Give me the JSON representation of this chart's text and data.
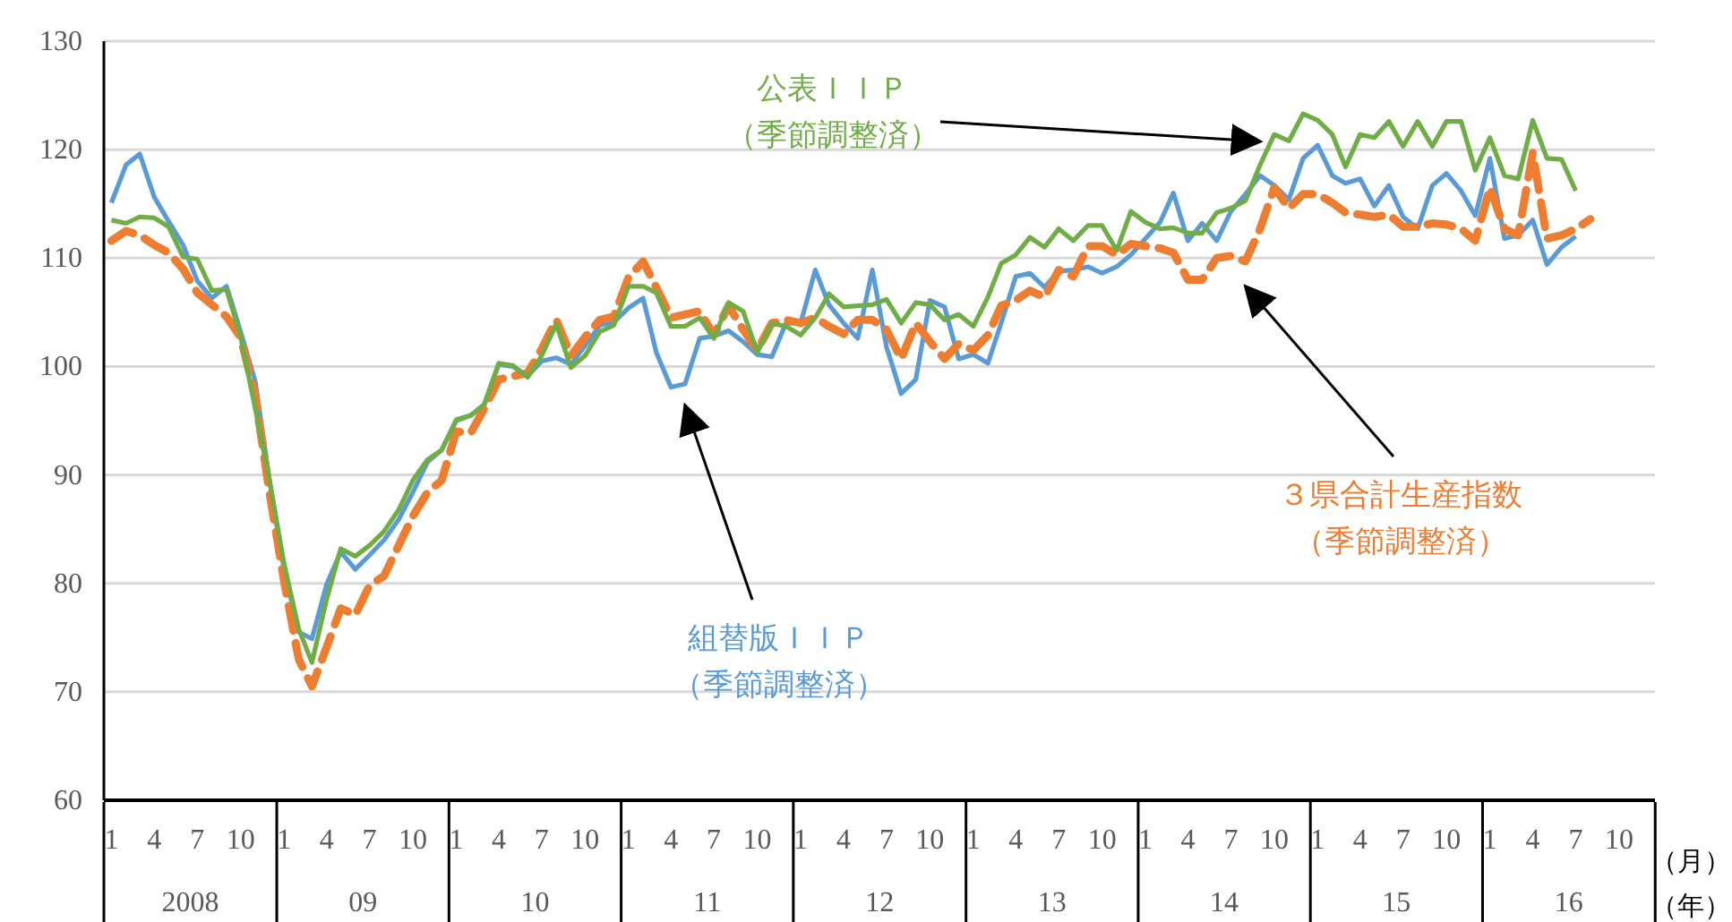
{
  "chart_data": {
    "type": "line",
    "x": [
      "2008-01",
      "2008-02",
      "2008-03",
      "2008-04",
      "2008-05",
      "2008-06",
      "2008-07",
      "2008-08",
      "2008-09",
      "2008-10",
      "2008-11",
      "2008-12",
      "2009-01",
      "2009-02",
      "2009-03",
      "2009-04",
      "2009-05",
      "2009-06",
      "2009-07",
      "2009-08",
      "2009-09",
      "2009-10",
      "2009-11",
      "2009-12",
      "2010-01",
      "2010-02",
      "2010-03",
      "2010-04",
      "2010-05",
      "2010-06",
      "2010-07",
      "2010-08",
      "2010-09",
      "2010-10",
      "2010-11",
      "2010-12",
      "2011-01",
      "2011-02",
      "2011-03",
      "2011-04",
      "2011-05",
      "2011-06",
      "2011-07",
      "2011-08",
      "2011-09",
      "2011-10",
      "2011-11",
      "2011-12",
      "2012-01",
      "2012-02",
      "2012-03",
      "2012-04",
      "2012-05",
      "2012-06",
      "2012-07",
      "2012-08",
      "2012-09",
      "2012-10",
      "2012-11",
      "2012-12",
      "2013-01",
      "2013-02",
      "2013-03",
      "2013-04",
      "2013-05",
      "2013-06",
      "2013-07",
      "2013-08",
      "2013-09",
      "2013-10",
      "2013-11",
      "2013-12",
      "2014-01",
      "2014-02",
      "2014-03",
      "2014-04",
      "2014-05",
      "2014-06",
      "2014-07",
      "2014-08",
      "2014-09",
      "2014-10",
      "2014-11",
      "2014-12",
      "2015-01",
      "2015-02",
      "2015-03",
      "2015-04",
      "2015-05",
      "2015-06",
      "2015-07",
      "2015-08",
      "2015-09",
      "2015-10",
      "2015-11",
      "2015-12",
      "2016-01",
      "2016-02",
      "2016-03",
      "2016-04",
      "2016-05",
      "2016-06",
      "2016-07",
      "2016-08"
    ],
    "series": [
      {
        "name": "組替版ＩＩＰ（季節調整済）",
        "color": "#5b9bd5",
        "line_style": "solid",
        "values": [
          115.1,
          118.6,
          119.6,
          115.6,
          113.4,
          111.2,
          107.9,
          106.3,
          107.4,
          103.2,
          98.6,
          89.5,
          81.3,
          75.5,
          74.9,
          79.9,
          82.9,
          81.3,
          82.6,
          84.0,
          85.9,
          88.4,
          91.2,
          92.3,
          95.0,
          95.5,
          96.4,
          100.2,
          100.0,
          99.1,
          100.5,
          100.8,
          100.2,
          101.9,
          103.8,
          104.1,
          105.4,
          106.3,
          101.3,
          98.1,
          98.4,
          102.6,
          102.8,
          103.3,
          102.3,
          101.1,
          100.9,
          104.0,
          104.0,
          108.9,
          105.7,
          104.0,
          102.6,
          108.9,
          101.8,
          97.5,
          98.8,
          106.1,
          105.5,
          100.7,
          101.1,
          100.3,
          104.0,
          108.3,
          108.6,
          107.3,
          108.8,
          108.9,
          109.2,
          108.6,
          109.2,
          110.3,
          111.8,
          113.3,
          116.0,
          111.6,
          113.2,
          111.6,
          114.3,
          115.9,
          117.6,
          116.7,
          115.4,
          119.2,
          120.4,
          117.6,
          116.9,
          117.3,
          114.8,
          116.7,
          113.8,
          112.7,
          116.7,
          117.8,
          116.2,
          113.9,
          119.2,
          111.8,
          112.1,
          113.5,
          109.4,
          111.0,
          112.0,
          null
        ]
      },
      {
        "name": "３県合計生産指数（季節調整済）",
        "color": "#ed7d31",
        "line_style": "dashed",
        "values": [
          111.6,
          112.5,
          112.1,
          111.2,
          110.5,
          109.0,
          106.8,
          105.7,
          104.6,
          102.7,
          97.2,
          88.4,
          80.2,
          73.0,
          70.5,
          74.1,
          77.7,
          77.1,
          79.8,
          80.7,
          83.5,
          86.2,
          88.4,
          89.5,
          94.0,
          93.9,
          96.1,
          98.8,
          99.1,
          99.4,
          101.6,
          104.3,
          101.0,
          102.7,
          104.3,
          104.6,
          108.2,
          109.7,
          107.3,
          104.5,
          104.8,
          105.1,
          102.9,
          105.6,
          103.4,
          101.5,
          104.0,
          104.3,
          104.0,
          104.5,
          103.7,
          103.0,
          104.3,
          104.3,
          103.4,
          100.7,
          104.0,
          102.3,
          100.7,
          102.1,
          101.5,
          102.9,
          105.6,
          106.1,
          107.0,
          106.4,
          108.9,
          108.3,
          111.1,
          111.1,
          110.3,
          111.3,
          111.1,
          110.9,
          110.5,
          108.0,
          108.0,
          110.0,
          110.2,
          109.7,
          112.7,
          116.5,
          114.6,
          115.9,
          115.9,
          115.1,
          114.2,
          114.0,
          113.8,
          114.0,
          112.9,
          112.9,
          113.2,
          113.1,
          112.7,
          111.6,
          116.5,
          112.7,
          112.1,
          119.7,
          111.8,
          112.1,
          112.7,
          113.6
        ]
      },
      {
        "name": "公表ＩＩＰ（季節調整済）",
        "color": "#70ad47",
        "line_style": "solid",
        "values": [
          113.5,
          113.2,
          113.8,
          113.7,
          112.9,
          110.1,
          109.9,
          107.0,
          107.1,
          102.7,
          96.1,
          89.5,
          81.8,
          75.8,
          72.7,
          78.5,
          83.2,
          82.5,
          83.5,
          84.8,
          86.8,
          89.5,
          91.4,
          92.3,
          95.1,
          95.5,
          96.5,
          100.3,
          100.1,
          99.0,
          101.0,
          103.9,
          99.9,
          101.0,
          103.2,
          103.8,
          107.4,
          107.4,
          106.8,
          103.7,
          103.7,
          104.5,
          102.6,
          105.9,
          105.1,
          101.3,
          104.0,
          103.7,
          102.9,
          104.5,
          106.7,
          105.5,
          105.6,
          105.7,
          106.2,
          104.0,
          105.9,
          105.7,
          104.3,
          104.8,
          103.7,
          106.4,
          109.5,
          110.3,
          111.9,
          111.0,
          112.7,
          111.6,
          113.0,
          113.0,
          110.7,
          114.3,
          113.3,
          112.7,
          112.8,
          112.3,
          112.3,
          114.2,
          114.6,
          115.3,
          118.6,
          121.4,
          120.8,
          123.3,
          122.7,
          121.4,
          118.4,
          121.4,
          121.1,
          122.6,
          120.3,
          122.6,
          120.3,
          122.6,
          122.6,
          118.1,
          121.1,
          117.6,
          117.3,
          122.7,
          119.2,
          119.1,
          116.2,
          null
        ]
      }
    ],
    "xlim": [
      "2007-12-16",
      "2016-12-16"
    ],
    "xticks": [
      {
        "value": "2008-01",
        "label": "1"
      },
      {
        "value": "2008-04",
        "label": "4"
      },
      {
        "value": "2008-07",
        "label": "7"
      },
      {
        "value": "2008-10",
        "label": "10"
      },
      {
        "value": "2009-01",
        "label": "1"
      },
      {
        "value": "2009-04",
        "label": "4"
      },
      {
        "value": "2009-07",
        "label": "7"
      },
      {
        "value": "2009-10",
        "label": "10"
      },
      {
        "value": "2010-01",
        "label": "1"
      },
      {
        "value": "2010-04",
        "label": "4"
      },
      {
        "value": "2010-07",
        "label": "7"
      },
      {
        "value": "2010-10",
        "label": "10"
      },
      {
        "value": "2011-01",
        "label": "1"
      },
      {
        "value": "2011-04",
        "label": "4"
      },
      {
        "value": "2011-07",
        "label": "7"
      },
      {
        "value": "2011-10",
        "label": "10"
      },
      {
        "value": "2012-01",
        "label": "1"
      },
      {
        "value": "2012-04",
        "label": "4"
      },
      {
        "value": "2012-07",
        "label": "7"
      },
      {
        "value": "2012-10",
        "label": "10"
      },
      {
        "value": "2013-01",
        "label": "1"
      },
      {
        "value": "2013-04",
        "label": "4"
      },
      {
        "value": "2013-07",
        "label": "7"
      },
      {
        "value": "2013-10",
        "label": "10"
      },
      {
        "value": "2014-01",
        "label": "1"
      },
      {
        "value": "2014-04",
        "label": "4"
      },
      {
        "value": "2014-07",
        "label": "7"
      },
      {
        "value": "2014-10",
        "label": "10"
      },
      {
        "value": "2015-01",
        "label": "1"
      },
      {
        "value": "2015-04",
        "label": "4"
      },
      {
        "value": "2015-07",
        "label": "7"
      },
      {
        "value": "2015-10",
        "label": "10"
      },
      {
        "value": "2016-01",
        "label": "1"
      },
      {
        "value": "2016-04",
        "label": "4"
      },
      {
        "value": "2016-07",
        "label": "7"
      },
      {
        "value": "2016-10",
        "label": "10"
      }
    ],
    "ylim": [
      60,
      130
    ],
    "yticks": [
      60,
      70,
      80,
      90,
      100,
      110,
      120,
      130
    ],
    "xlabel": "（月）",
    "annotations": [
      "2008",
      "09",
      "10",
      "11",
      "12",
      "13",
      "14",
      "15",
      "16",
      "（年）"
    ],
    "grid": "y",
    "legend": false,
    "marker": "none"
  }
}
